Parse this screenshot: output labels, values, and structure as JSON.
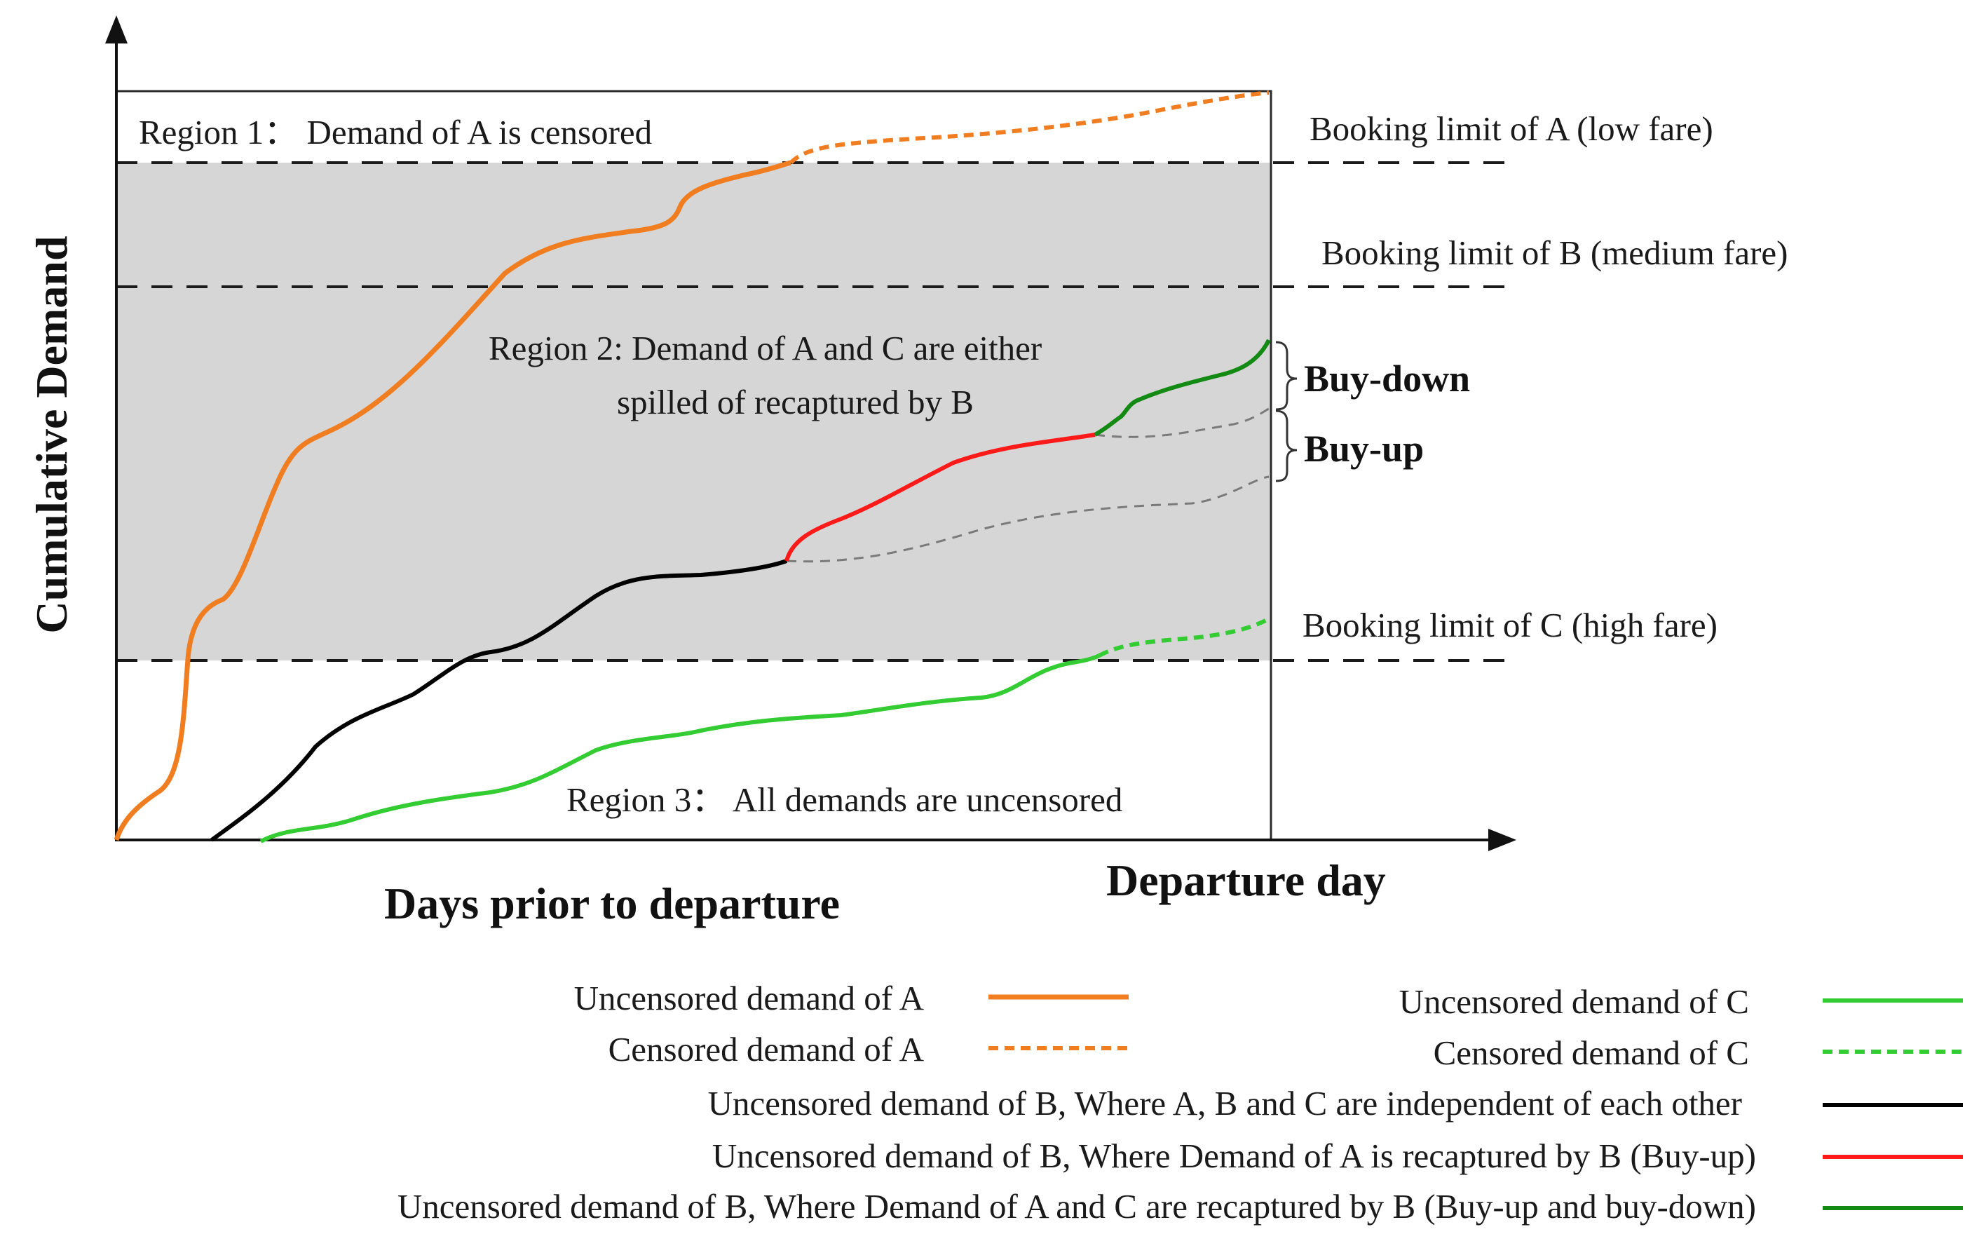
{
  "axes": {
    "y_title": "Cumulative Demand",
    "x_title": "Days prior to departure",
    "x_end_label": "Departure day"
  },
  "regions": {
    "region1": "Region 1： Demand of A is censored",
    "region2_line1": "Region 2: Demand of A and C are either",
    "region2_line2": "spilled of recaptured by B",
    "region3": "Region 3： All demands are uncensored"
  },
  "limits": {
    "a": "Booking limit of A (low fare)",
    "b": "Booking limit of B (medium fare)",
    "c": "Booking limit of C (high fare)"
  },
  "annotations": {
    "buy_down": "Buy-down",
    "buy_up": "Buy-up"
  },
  "legend": [
    {
      "label": "Uncensored demand of A",
      "color": "#f07d1f",
      "style": "solid"
    },
    {
      "label": "Censored demand of A",
      "color": "#f07d1f",
      "style": "dashed"
    },
    {
      "label": "Uncensored demand of C",
      "color": "#33cc33",
      "style": "solid"
    },
    {
      "label": "Censored demand of C",
      "color": "#33cc33",
      "style": "dashed"
    },
    {
      "label": "Uncensored demand of B, Where A, B and C are independent of each other",
      "color": "#000000",
      "style": "solid"
    },
    {
      "label": "Uncensored demand of B, Where Demand of A is recaptured by B (Buy-up)",
      "color": "#ff0000",
      "style": "solid"
    },
    {
      "label": "Uncensored demand of B, Where Demand of A and C are recaptured by B (Buy-up and buy-down)",
      "color": "#138a13",
      "style": "solid"
    }
  ],
  "colors": {
    "region2_fill": "#d6d6d6",
    "limit_dash": "#1a1a1a",
    "reference_dash": "#7a7a7a"
  }
}
